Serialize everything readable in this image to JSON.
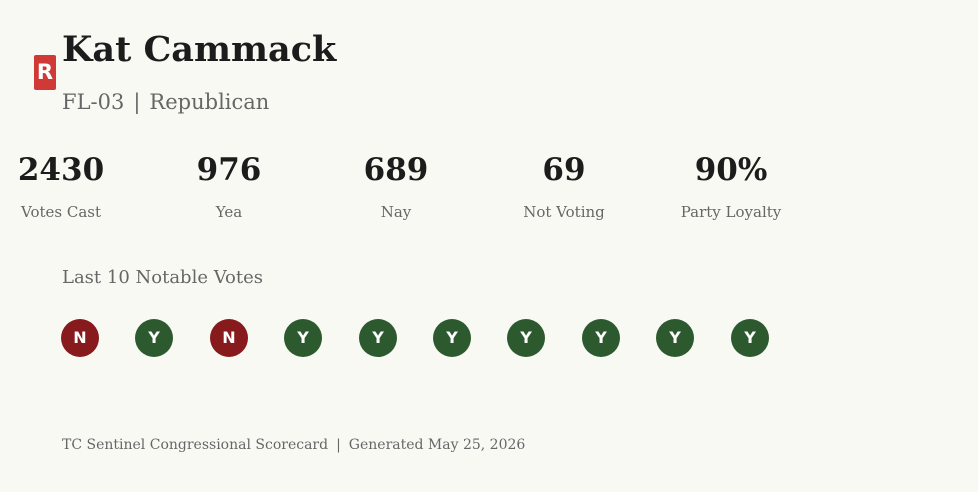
{
  "member": {
    "party_code": "R",
    "name": "Kat Cammack",
    "district": "FL-03",
    "separator": "|",
    "party": "Republican"
  },
  "colors": {
    "republican": "#cf3a36",
    "yes": "#2c5a2e",
    "no": "#871a1c"
  },
  "stats": [
    {
      "value": "2430",
      "label": "Votes Cast"
    },
    {
      "value": "976",
      "label": "Yea"
    },
    {
      "value": "689",
      "label": "Nay"
    },
    {
      "value": "69",
      "label": "Not Voting"
    },
    {
      "value": "90%",
      "label": "Party Loyalty"
    }
  ],
  "notable_votes": {
    "title": "Last 10 Notable Votes",
    "votes": [
      "N",
      "Y",
      "N",
      "Y",
      "Y",
      "Y",
      "Y",
      "Y",
      "Y",
      "Y"
    ]
  },
  "footer": {
    "source": "TC Sentinel Congressional Scorecard",
    "separator": "|",
    "generated": "Generated May 25, 2026"
  }
}
